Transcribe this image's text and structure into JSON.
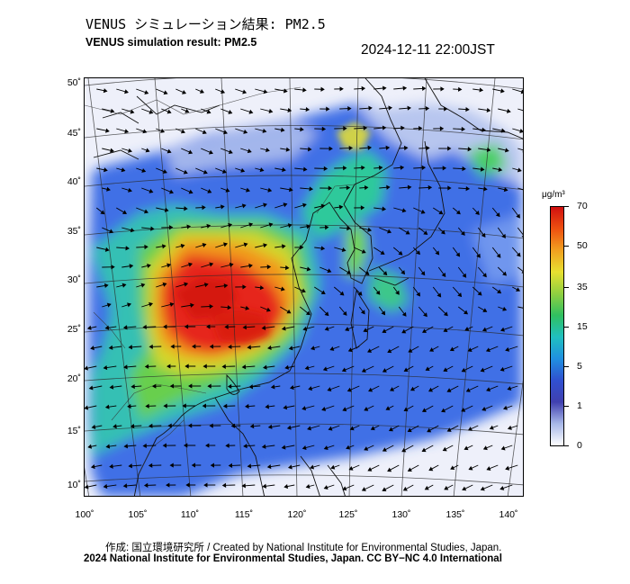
{
  "header": {
    "title_jp": "VENUS シミュレーション結果: PM2.5",
    "title_en": "VENUS simulation result: PM2.5",
    "timestamp": "2024-12-11 22:00JST"
  },
  "map": {
    "lat_labels": [
      "50˚",
      "45˚",
      "40˚",
      "35˚",
      "30˚",
      "25˚",
      "20˚",
      "15˚",
      "10˚"
    ],
    "lon_labels": [
      "100˚",
      "105˚",
      "110˚",
      "115˚",
      "120˚",
      "125˚",
      "130˚",
      "135˚",
      "140˚"
    ],
    "colors": {
      "background": "#eef0fa",
      "very_low": "#c8d4f0",
      "low": "#4a78e8",
      "mid_low": "#26b8d0",
      "mid": "#3cc873",
      "mid_high": "#bada30",
      "high": "#f2a020",
      "very_high": "#e82418"
    }
  },
  "colorbar": {
    "unit": "μg/m³",
    "ticks": [
      "70",
      "50",
      "35",
      "15",
      "5",
      "1",
      "0"
    ],
    "gradient": [
      "#d01010",
      "#ee5010",
      "#f0a020",
      "#e8e030",
      "#90d040",
      "#30c060",
      "#20c0c0",
      "#2090e0",
      "#3050d0",
      "#4040b0",
      "#a8b8e8",
      "#ffffff"
    ]
  },
  "footer": {
    "credit_jp": "作成: 国立環境研究所 / Created by National Institute for Environmental Studies, Japan.",
    "credit_en": "2024 National Institute for Environmental Studies, Japan. CC BY−NC 4.0 International"
  }
}
